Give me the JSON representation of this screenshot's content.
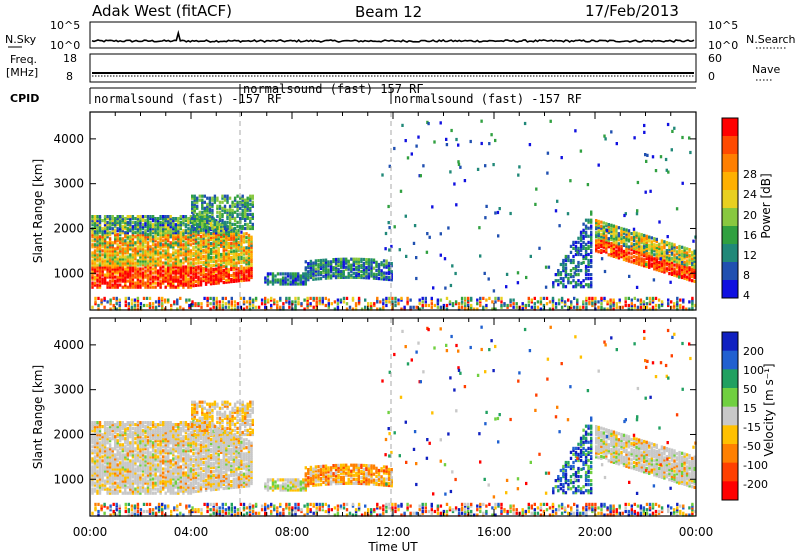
{
  "header": {
    "station": "Adak West (fitACF)",
    "beam": "Beam 12",
    "date": "17/Feb/2013"
  },
  "nsky_panel": {
    "left_label": "N.Sky",
    "left_ticks": [
      "10^5",
      "10^0"
    ],
    "right_label": "N.Search",
    "right_ticks": [
      "10^5",
      "10^0"
    ]
  },
  "freq_panel": {
    "left_label_1": "Freq.",
    "left_label_2": "[MHz]",
    "left_ticks": [
      "18",
      "8"
    ],
    "right_label": "Nave",
    "right_ticks": [
      "60",
      "0"
    ]
  },
  "cpid_panel": {
    "label": "CPID",
    "segments": [
      {
        "text": "normalsound (fast) -157 RF",
        "start_hour": 0
      },
      {
        "text": "normalsound (fast) 157 RF",
        "start_hour": 6
      },
      {
        "text": "normalsound (fast) -157 RF",
        "start_hour": 12
      }
    ]
  },
  "power_panel": {
    "ylabel": "Slant Range [km]",
    "cbar_label": "Power [dB]",
    "cbar_ticks": [
      "28",
      "24",
      "20",
      "16",
      "12",
      "8",
      "4"
    ],
    "cbar_colors": [
      "#ff0000",
      "#ff4a00",
      "#ff7f00",
      "#ffb000",
      "#e8d020",
      "#88c840",
      "#30a040",
      "#208878",
      "#2050b0",
      "#1010e0"
    ]
  },
  "velocity_panel": {
    "ylabel": "Slant Range [km]",
    "cbar_label": "Velocity [m s⁻¹]",
    "cbar_ticks": [
      "200",
      "100",
      "50",
      "15",
      "-15",
      "-50",
      "-100",
      "-200"
    ],
    "cbar_colors": [
      "#1020c0",
      "#2060d0",
      "#20a060",
      "#70d040",
      "#c8c8c8",
      "#ffc000",
      "#ff8000",
      "#ff4000",
      "#ff0000"
    ]
  },
  "x_axis": {
    "label": "Time UT",
    "ticks": [
      "00:00",
      "04:00",
      "08:00",
      "12:00",
      "16:00",
      "20:00",
      "00:00"
    ]
  },
  "chart_data": {
    "type": "heatmap",
    "title": "Adak West (fitACF) Beam 12 17/Feb/2013",
    "xlabel": "Time UT",
    "ylabel": "Slant Range [km]",
    "xlim_hours": [
      0,
      24
    ],
    "ylim_km": [
      180,
      4600
    ],
    "y_ticks_km": [
      1000,
      2000,
      3000,
      4000
    ],
    "power_colorbar_db": [
      4,
      8,
      12,
      16,
      20,
      24,
      28
    ],
    "velocity_colorbar_ms": [
      200,
      100,
      50,
      15,
      -15,
      -50,
      -100,
      -200
    ],
    "approx_echo_regions": [
      {
        "start_hour": 0.0,
        "end_hour": 6.3,
        "range_km": [
          700,
          2500
        ],
        "power": "strong 20-30 dB near 900-1200 km",
        "velocity": "mostly -15..15, some orange -50"
      },
      {
        "start_hour": 6.8,
        "end_hour": 8.5,
        "range_km": [
          750,
          1000
        ],
        "power": "weak 4-12 dB",
        "velocity": "mixed"
      },
      {
        "start_hour": 8.5,
        "end_hour": 11.8,
        "range_km": [
          800,
          1300
        ],
        "power": "weak 4-12 dB",
        "velocity": "-50..-100"
      },
      {
        "start_hour": 18.3,
        "end_hour": 19.8,
        "range_km": [
          700,
          2500
        ],
        "power": "weak-moderate",
        "velocity": "15..200 positive"
      },
      {
        "start_hour": 20.0,
        "end_hour": 24.0,
        "range_km": [
          800,
          2200
        ],
        "power": "strong 20-30 dB near 1000 km",
        "velocity": "mostly -15..15"
      }
    ]
  }
}
